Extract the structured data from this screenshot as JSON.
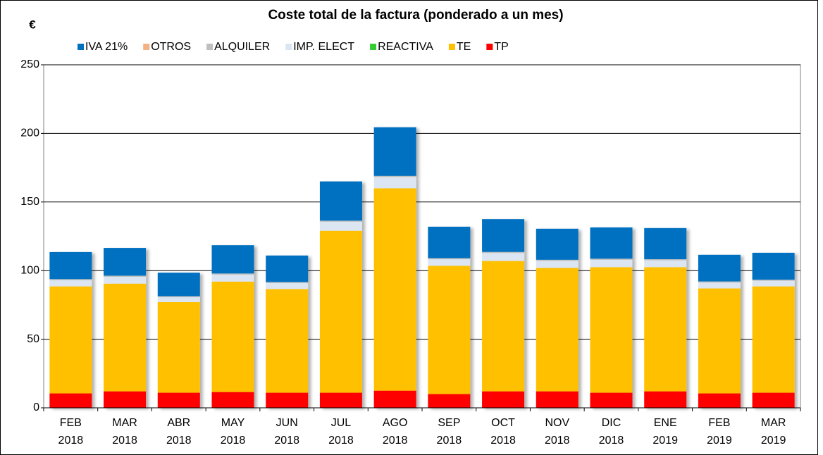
{
  "chart_data": {
    "type": "stacked_bar",
    "title": "Coste total de la factura (ponderado a un mes)",
    "y_label": "€",
    "categories": [
      "FEB 2018",
      "MAR 2018",
      "ABR 2018",
      "MAY 2018",
      "JUN 2018",
      "JUL 2018",
      "AGO 2018",
      "SEP 2018",
      "OCT 2018",
      "NOV 2018",
      "DIC 2018",
      "ENE 2019",
      "FEB 2019",
      "MAR 2019"
    ],
    "series": [
      {
        "name": "IVA 21%",
        "color": "#0070c0",
        "values": [
          19.7,
          20.2,
          17.1,
          20.6,
          19.3,
          28.6,
          35.5,
          22.9,
          23.9,
          22.6,
          22.8,
          22.7,
          19.4,
          19.6
        ]
      },
      {
        "name": "OTROS",
        "color": "#f4b183",
        "values": [
          0,
          0,
          0,
          0,
          0,
          0,
          0,
          0,
          0,
          0,
          0,
          0,
          0,
          0
        ]
      },
      {
        "name": "ALQUILER",
        "color": "#bfbfbf",
        "values": [
          0.8,
          0.8,
          0.8,
          0.8,
          0.8,
          0.8,
          0.8,
          0.8,
          0.8,
          0.8,
          0.8,
          0.8,
          0.8,
          0.8
        ]
      },
      {
        "name": "IMP. ELECT",
        "color": "#dce6f2",
        "values": [
          4.5,
          5,
          3.6,
          5.1,
          4.4,
          6.6,
          8.2,
          4.8,
          5.8,
          5.1,
          5.4,
          5,
          4.3,
          4.1
        ]
      },
      {
        "name": "REACTIVA",
        "color": "#33cc33",
        "values": [
          0,
          0,
          0,
          0,
          0,
          0,
          0,
          0,
          0,
          0,
          0,
          0,
          0,
          0
        ]
      },
      {
        "name": "TE",
        "color": "#ffc000",
        "values": [
          78,
          78.5,
          66,
          80.5,
          75.5,
          118,
          147.5,
          93.5,
          95,
          90,
          91.5,
          90.5,
          76.5,
          77.5
        ]
      },
      {
        "name": "TP",
        "color": "#ff0000",
        "values": [
          10.5,
          12,
          11,
          11.5,
          11,
          11,
          12.5,
          10,
          12,
          12,
          11,
          12,
          10.5,
          11
        ]
      }
    ],
    "ylim": [
      0,
      250
    ],
    "yticks": [
      0,
      50,
      100,
      150,
      200,
      250
    ],
    "grid": true
  }
}
